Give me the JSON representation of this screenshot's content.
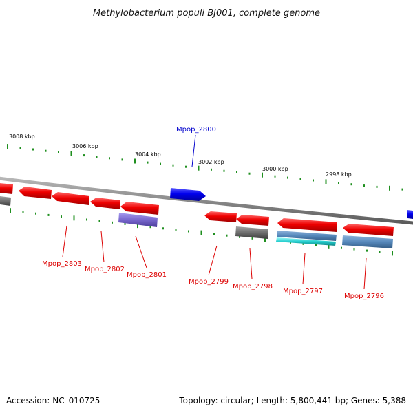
{
  "title": "Methylobacterium populi BJ001, complete genome",
  "footer": {
    "accession": "Accession: NC_010725",
    "summary": "Topology: circular; Length: 5,800,441 bp; Genes: 5,388"
  },
  "colors": {
    "backbone": "#8a8a8a",
    "tick": "#1f8f1f",
    "forward_gene": "#0000ee",
    "reverse_gene": "#ee0000",
    "forward_label": "#0000cc",
    "reverse_label": "#dd0000",
    "gray_feature": "#6e6e6e",
    "purple_feature": "#7766cc",
    "teal_feature": "#22cccc",
    "steel_feature": "#5588bb"
  },
  "ticks": [
    {
      "label": "3008 kbp"
    },
    {
      "label": "3006 kbp"
    },
    {
      "label": "3004 kbp"
    },
    {
      "label": "3002 kbp"
    },
    {
      "label": "3000 kbp"
    },
    {
      "label": "2998 kbp"
    }
  ],
  "gene_labels": [
    {
      "label": "Mpop_2800",
      "strand": "forward"
    },
    {
      "label": "Mpop_2803",
      "strand": "reverse"
    },
    {
      "label": "Mpop_2802",
      "strand": "reverse"
    },
    {
      "label": "Mpop_2801",
      "strand": "reverse"
    },
    {
      "label": "Mpop_2799",
      "strand": "reverse"
    },
    {
      "label": "Mpop_2798",
      "strand": "reverse"
    },
    {
      "label": "Mpop_2797",
      "strand": "reverse"
    },
    {
      "label": "Mpop_2796",
      "strand": "reverse"
    }
  ]
}
